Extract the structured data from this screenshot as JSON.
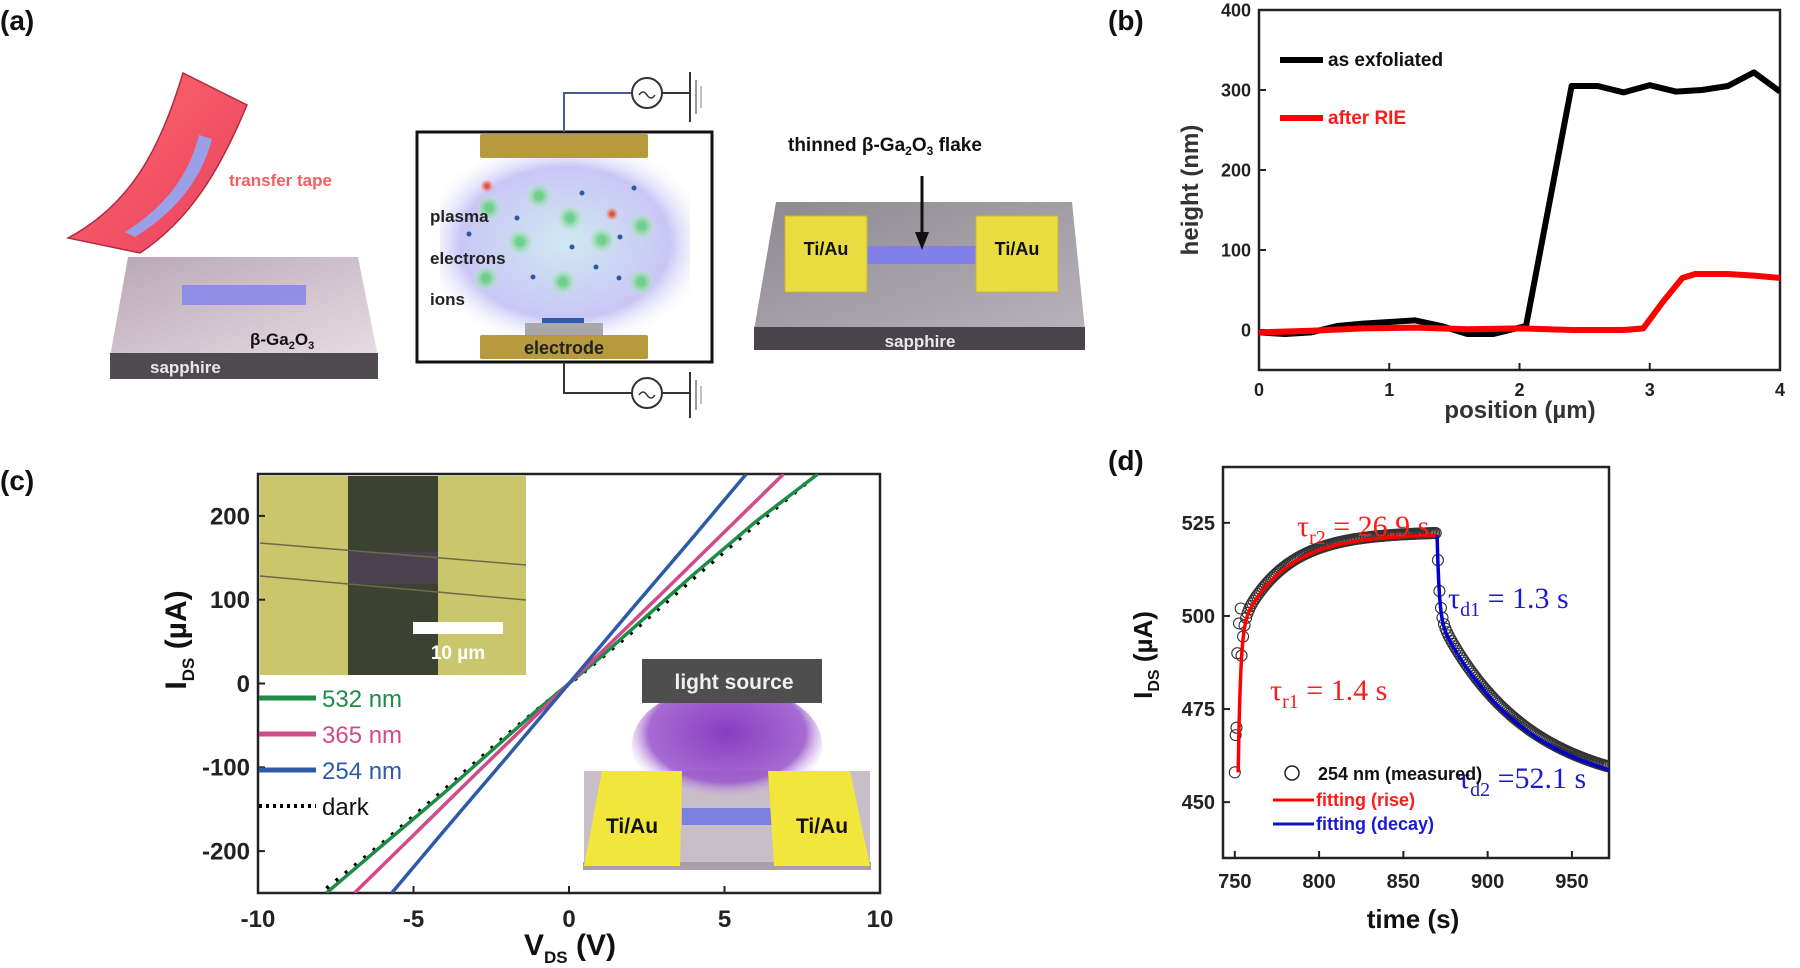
{
  "panels": {
    "a": {
      "label": "(a)",
      "step1": {
        "tape_label": "transfer tape",
        "flake_label": "β-Ga",
        "flake_sub1": "2",
        "flake_mid": "O",
        "flake_sub2": "3",
        "substrate_label": "sapphire"
      },
      "step2": {
        "labels": [
          "plasma",
          "electrons",
          "ions"
        ],
        "electrode_label": "electrode"
      },
      "step3": {
        "title_pre": "thinned β-Ga",
        "title_sub1": "2",
        "title_mid": "O",
        "title_sub2": "3",
        "title_post": " flake",
        "contact_left": "Ti/Au",
        "contact_right": "Ti/Au",
        "substrate_label": "sapphire"
      }
    },
    "b": {
      "label": "(b)"
    },
    "c": {
      "label": "(c)",
      "inset_scale_label": "10 µm",
      "light_source_label": "light source",
      "contact_left": "Ti/Au",
      "contact_right": "Ti/Au"
    },
    "d": {
      "label": "(d)"
    }
  },
  "chart_data": [
    {
      "id": "b",
      "type": "line",
      "title": "",
      "xlabel": "position (µm)",
      "ylabel": "height (nm)",
      "xlim": [
        0,
        4
      ],
      "ylim": [
        -50,
        400
      ],
      "xticks": [
        0,
        1,
        2,
        3,
        4
      ],
      "yticks": [
        0,
        100,
        200,
        300,
        400
      ],
      "xtick_labels": [
        "0",
        "1",
        "2",
        "3",
        "4"
      ],
      "ytick_labels": [
        "0",
        "100",
        "200",
        "300",
        "400"
      ],
      "grid": false,
      "legend": "top-left",
      "series": [
        {
          "name": "as exfoliated",
          "color": "#000000",
          "x": [
            0,
            0.2,
            0.4,
            0.6,
            0.8,
            1.0,
            1.2,
            1.4,
            1.6,
            1.8,
            2.0,
            2.05,
            2.4,
            2.6,
            2.8,
            3.0,
            3.2,
            3.4,
            3.6,
            3.8,
            4.0
          ],
          "y": [
            -3,
            -5,
            -3,
            5,
            8,
            10,
            12,
            5,
            -5,
            -5,
            3,
            5,
            305,
            305,
            297,
            306,
            298,
            300,
            305,
            322,
            298
          ]
        },
        {
          "name": "after RIE",
          "color": "#ff0000",
          "x": [
            0,
            0.4,
            0.8,
            1.2,
            1.6,
            2.0,
            2.4,
            2.8,
            2.95,
            3.1,
            3.25,
            3.35,
            3.6,
            3.8,
            4.0
          ],
          "y": [
            -3,
            -1,
            2,
            3,
            1,
            2,
            0,
            0,
            2,
            35,
            65,
            70,
            70,
            68,
            65
          ]
        }
      ]
    },
    {
      "id": "c",
      "type": "line",
      "title": "",
      "xlabel": "V",
      "xlabel_sub": "DS",
      "xlabel_unit": " (V)",
      "ylabel": "I",
      "ylabel_sub": "DS",
      "ylabel_unit": " (µA)",
      "xlim": [
        -10,
        10
      ],
      "ylim": [
        -250,
        250
      ],
      "xticks": [
        -10,
        -5,
        0,
        5,
        10
      ],
      "yticks": [
        -200,
        -100,
        0,
        100,
        200
      ],
      "xtick_labels": [
        "-10",
        "-5",
        "0",
        "5",
        "10"
      ],
      "ytick_labels": [
        "-200",
        "-100",
        "0",
        "100",
        "200"
      ],
      "grid": false,
      "legend": "middle-left",
      "series": [
        {
          "name": "532 nm",
          "color": "#1e8c46",
          "style": "solid",
          "x": [
            -7.8,
            -6,
            -4,
            -2,
            -1,
            0,
            1,
            2,
            4,
            6,
            8.0
          ],
          "y": [
            -250,
            -193,
            -130,
            -64,
            -31,
            0,
            31,
            64,
            130,
            193,
            250
          ]
        },
        {
          "name": "365 nm",
          "color": "#d14a8a",
          "style": "solid",
          "x": [
            -6.9,
            -5,
            -3,
            -1,
            0,
            1,
            3,
            5,
            6.9
          ],
          "y": [
            -250,
            -181,
            -108,
            -36,
            0,
            36,
            108,
            181,
            250
          ]
        },
        {
          "name": "254 nm",
          "color": "#2e5ba8",
          "style": "solid",
          "x": [
            -5.7,
            -4,
            -2,
            0,
            2,
            4,
            5.7
          ],
          "y": [
            -250,
            -175,
            -88,
            0,
            88,
            175,
            250
          ]
        },
        {
          "name": "dark",
          "color": "#000000",
          "style": "dotted",
          "x": [
            -8.0,
            -6,
            -4,
            -2,
            -1,
            0,
            1,
            2,
            4,
            6,
            7.8
          ],
          "y": [
            -250,
            -190,
            -126,
            -61,
            -30,
            0,
            30,
            61,
            126,
            190,
            245
          ]
        }
      ]
    },
    {
      "id": "d",
      "type": "scatter",
      "title": "",
      "xlabel": "time (s)",
      "ylabel": "I",
      "ylabel_sub": "DS",
      "ylabel_unit": " (µA)",
      "xlim": [
        743,
        972
      ],
      "ylim": [
        435,
        540
      ],
      "xticks": [
        750,
        800,
        850,
        900,
        950
      ],
      "yticks": [
        450,
        475,
        500,
        525
      ],
      "xtick_labels": [
        "750",
        "800",
        "850",
        "900",
        "950"
      ],
      "ytick_labels": [
        "450",
        "475",
        "500",
        "525"
      ],
      "grid": false,
      "legend": "bottom-left",
      "series": [
        {
          "name": "254 nm (measured)",
          "marker": "open-circle",
          "color": "#000000",
          "rise": {
            "t_on": 752,
            "t_off": 870,
            "i_start": 458,
            "i_plateau": 522
          },
          "decay": {
            "t_start": 870,
            "t_end": 972,
            "i_end": 462
          }
        },
        {
          "name": "fitting (rise)",
          "color": "#ff0000",
          "line": "solid"
        },
        {
          "name": "fitting (decay)",
          "color": "#0000cc",
          "line": "solid"
        }
      ],
      "annotations": [
        {
          "text": "τ",
          "sub": "r2",
          "value": " = 26.9 s",
          "color": "#ff0000"
        },
        {
          "text": "τ",
          "sub": "r1",
          "value": " = 1.4 s",
          "color": "#ff0000"
        },
        {
          "text": "τ",
          "sub": "d1",
          "value": " = 1.3 s",
          "color": "#0000cc"
        },
        {
          "text": "τ",
          "sub": "d2",
          "value": " =52.1 s",
          "color": "#0000cc"
        }
      ]
    }
  ]
}
